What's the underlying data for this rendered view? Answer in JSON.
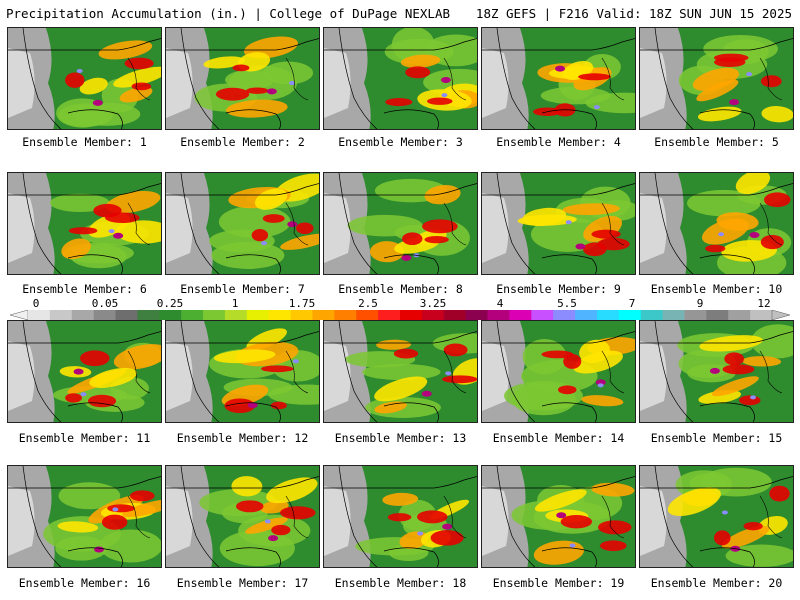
{
  "header": {
    "title": "Precipitation Accumulation (in.) | College of DuPage NEXLAB",
    "run_info": "18Z GEFS | F216 Valid: 18Z SUN JUN 15 2025"
  },
  "members": [
    {
      "label": "Ensemble Member: 1"
    },
    {
      "label": "Ensemble Member: 2"
    },
    {
      "label": "Ensemble Member: 3"
    },
    {
      "label": "Ensemble Member: 4"
    },
    {
      "label": "Ensemble Member: 5"
    },
    {
      "label": "Ensemble Member: 6"
    },
    {
      "label": "Ensemble Member: 7"
    },
    {
      "label": "Ensemble Member: 8"
    },
    {
      "label": "Ensemble Member: 9"
    },
    {
      "label": "Ensemble Member: 10"
    },
    {
      "label": "Ensemble Member: 11"
    },
    {
      "label": "Ensemble Member: 12"
    },
    {
      "label": "Ensemble Member: 13"
    },
    {
      "label": "Ensemble Member: 14"
    },
    {
      "label": "Ensemble Member: 15"
    },
    {
      "label": "Ensemble Member: 16"
    },
    {
      "label": "Ensemble Member: 17"
    },
    {
      "label": "Ensemble Member: 18"
    },
    {
      "label": "Ensemble Member: 19"
    },
    {
      "label": "Ensemble Member: 20"
    }
  ],
  "color_scale": {
    "labels": [
      "0",
      "0.05",
      "0.25",
      "1",
      "1.75",
      "2.5",
      "3.25",
      "4",
      "5.5",
      "7",
      "9",
      "12"
    ],
    "colors": [
      "#e6e6e6",
      "#c8c8c8",
      "#a8a8a8",
      "#8a8a8a",
      "#6e6e6e",
      "#3f7f3f",
      "#2e8b2e",
      "#4caf32",
      "#7cc832",
      "#b4dc28",
      "#e6f000",
      "#ffe600",
      "#ffc800",
      "#ffa500",
      "#ff7f00",
      "#ff5000",
      "#ff1e1e",
      "#e60000",
      "#c8001e",
      "#a00028",
      "#8c0050",
      "#b4007d",
      "#dc00b4",
      "#c850ff",
      "#8c8cff",
      "#50b4ff",
      "#28dcff",
      "#00ffff",
      "#3cc8c8",
      "#78b4b4",
      "#969696",
      "#7d7d7d",
      "#a0a0a0",
      "#c0c0c0"
    ]
  }
}
